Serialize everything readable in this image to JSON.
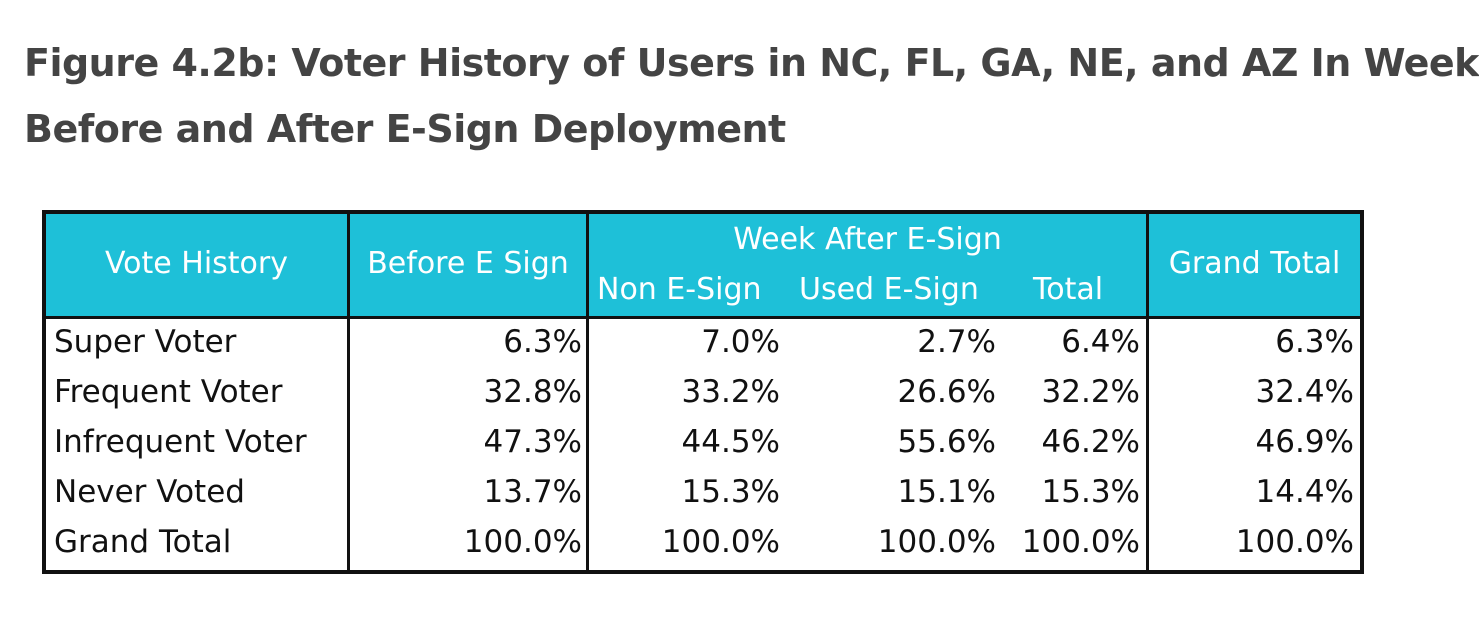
{
  "title": {
    "line1": "Figure 4.2b: Voter History of Users in NC, FL, GA, NE, and AZ In Week",
    "line2": "Before and After E-Sign Deployment"
  },
  "chart_data": {
    "type": "table",
    "title": "Figure 4.2b: Voter History of Users in NC, FL, GA, NE, and AZ In Week Before and After E-Sign Deployment",
    "headers": {
      "vote_history": "Vote History",
      "before": "Before E Sign",
      "week_after_group": "Week After E-Sign",
      "non_esign": "Non E-Sign",
      "used_esign": "Used E-Sign",
      "total": "Total",
      "grand_total": "Grand Total"
    },
    "rows": [
      {
        "label": "Super Voter",
        "before": "6.3%",
        "non_esign": "7.0%",
        "used_esign": "2.7%",
        "total": "6.4%",
        "grand_total": "6.3%"
      },
      {
        "label": "Frequent Voter",
        "before": "32.8%",
        "non_esign": "33.2%",
        "used_esign": "26.6%",
        "total": "32.2%",
        "grand_total": "32.4%"
      },
      {
        "label": "Infrequent Voter",
        "before": "47.3%",
        "non_esign": "44.5%",
        "used_esign": "55.6%",
        "total": "46.2%",
        "grand_total": "46.9%"
      },
      {
        "label": "Never Voted",
        "before": "13.7%",
        "non_esign": "15.3%",
        "used_esign": "15.1%",
        "total": "15.3%",
        "grand_total": "14.4%"
      },
      {
        "label": "Grand Total",
        "before": "100.0%",
        "non_esign": "100.0%",
        "used_esign": "100.0%",
        "total": "100.0%",
        "grand_total": "100.0%"
      }
    ]
  },
  "colors": {
    "header_bg": "#1ec0d8",
    "header_text": "#ffffff",
    "border": "#111111",
    "title_text": "#444444"
  }
}
